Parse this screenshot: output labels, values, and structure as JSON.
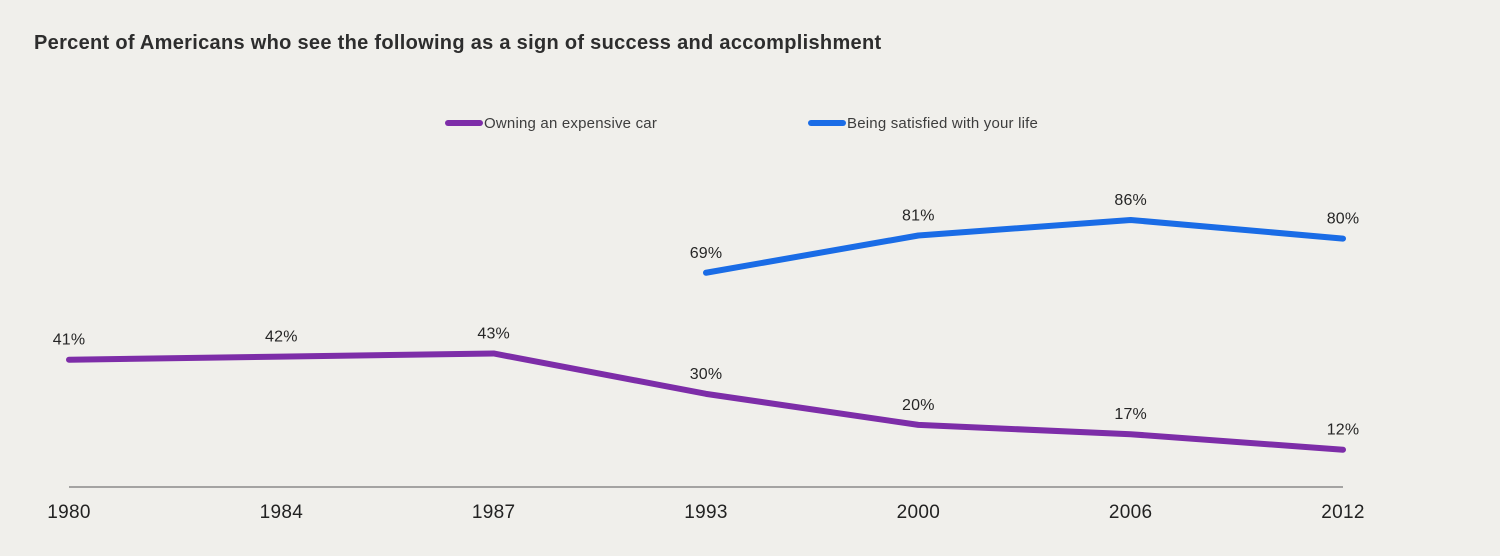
{
  "title": "Percent of Americans who see the following as a sign of success and accomplishment",
  "chart_data": {
    "type": "line",
    "categories": [
      "1980",
      "1984",
      "1987",
      "1993",
      "2000",
      "2006",
      "2012"
    ],
    "series": [
      {
        "name": "Owning an expensive car",
        "color": "#7d2da8",
        "values": [
          41,
          42,
          43,
          30,
          20,
          17,
          12
        ]
      },
      {
        "name": "Being satisfied with your life",
        "color": "#1a6ce6",
        "values": [
          null,
          null,
          null,
          69,
          81,
          86,
          80
        ]
      }
    ],
    "value_suffix": "%",
    "ylim": [
      0,
      100
    ],
    "grid": false,
    "legend_position": "top-center",
    "xlabel": "",
    "ylabel": ""
  },
  "colors": {
    "background": "#f0efeb",
    "title_text": "#2d2d2d",
    "label_text": "#262626",
    "axis_line": "#8a8a8a",
    "series_purple": "#7d2da8",
    "series_blue": "#1a6ce6"
  }
}
